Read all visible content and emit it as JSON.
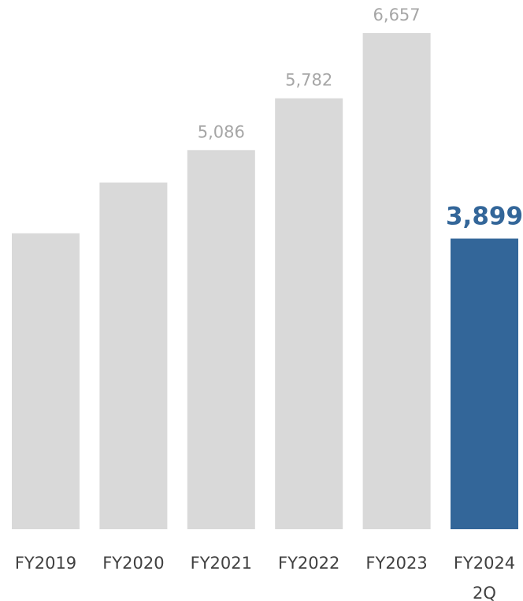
{
  "chart_data": {
    "type": "bar",
    "categories": [
      [
        "FY2019"
      ],
      [
        "FY2020"
      ],
      [
        "FY2021"
      ],
      [
        "FY2022"
      ],
      [
        "FY2023"
      ],
      [
        "FY2024",
        "2Q"
      ]
    ],
    "values": [
      3970,
      4650,
      5086,
      5782,
      6657,
      3899
    ],
    "data_labels": [
      "",
      "",
      "5,086",
      "5,782",
      "6,657",
      "3,899"
    ],
    "highlight_index": 5,
    "ylim": [
      0,
      7100
    ],
    "grid": false,
    "legend": "none",
    "colors": {
      "bar": "#d9d9d9",
      "highlight_bar": "#336699",
      "label": "#a6a6a6",
      "highlight_label": "#336699",
      "tick": "#404040"
    }
  }
}
